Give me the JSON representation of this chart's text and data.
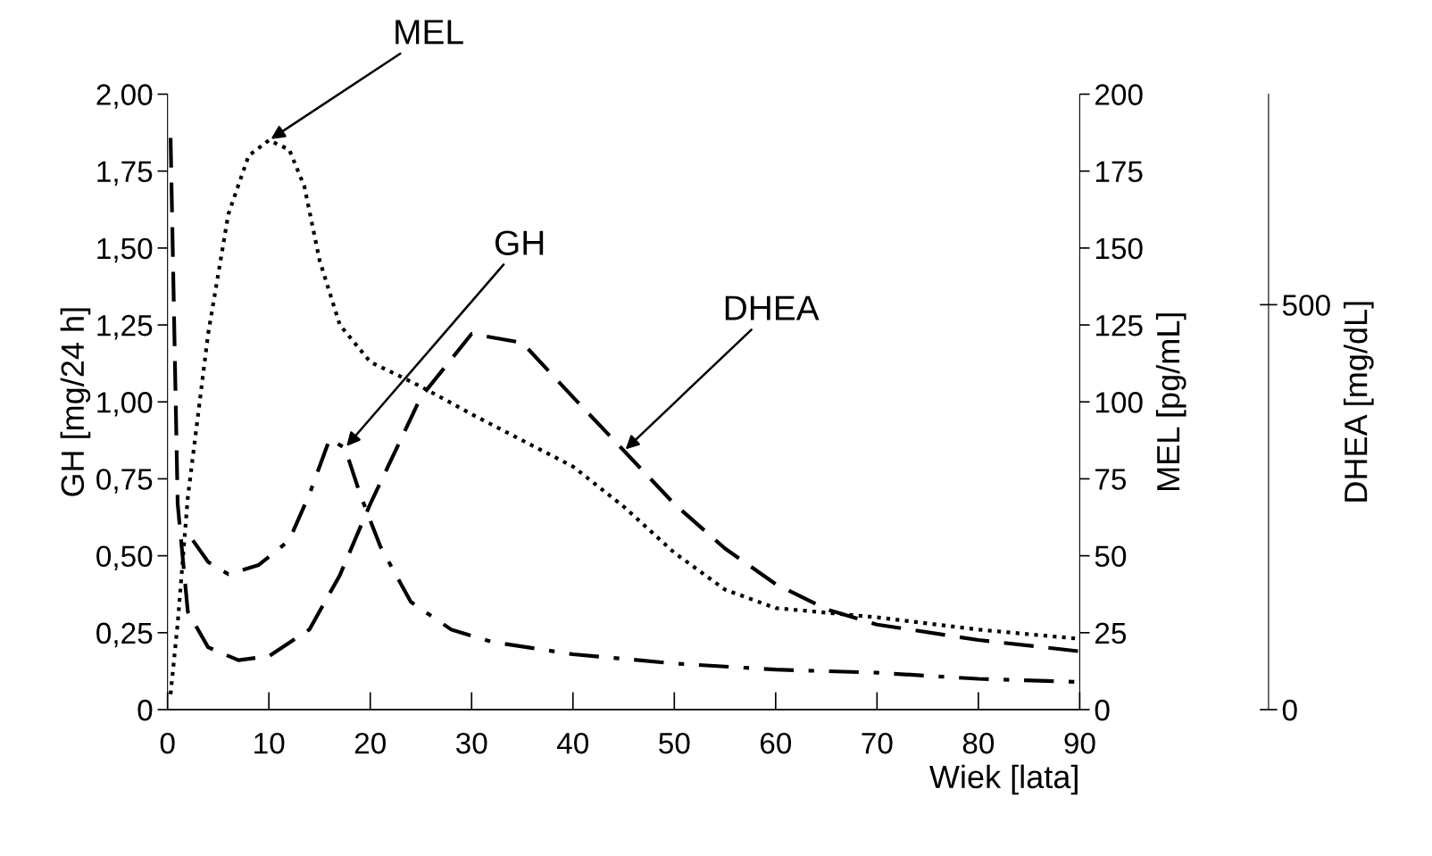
{
  "chart_data": {
    "type": "line",
    "xlabel": "Wiek [lata]",
    "ylabel": "GH [mg/24 h]",
    "y2label": "MEL [pg/mL]",
    "y3label": "DHEA [mg/dL]",
    "xlim": [
      0,
      90
    ],
    "xticks": [
      0,
      10,
      20,
      30,
      40,
      50,
      60,
      70,
      80,
      90
    ],
    "ylim": [
      0,
      2
    ],
    "yticks": [
      0,
      {
        "value": 0.25,
        "label": "0,25"
      },
      {
        "value": 0.5,
        "label": "0,50"
      },
      {
        "value": 0.75,
        "label": "0,75"
      },
      {
        "value": 1,
        "label": "1,00"
      },
      {
        "value": 1.25,
        "label": "1,25"
      },
      {
        "value": 1.5,
        "label": "1,50"
      },
      {
        "value": 1.75,
        "label": "1,75"
      },
      {
        "value": 2,
        "label": "2,00"
      }
    ],
    "y2lim": [
      0,
      200
    ],
    "y2ticks": [
      0,
      25,
      50,
      75,
      100,
      125,
      150,
      175,
      200
    ],
    "y3lim": [
      0,
      760
    ],
    "y3ticks": [
      0,
      500
    ],
    "grid": false,
    "marker": "none",
    "series": [
      {
        "color": "#000000",
        "line_style": "dotted",
        "axis": "y2",
        "x": [
          0.3,
          1,
          2,
          4,
          6,
          8,
          10,
          12,
          13.5,
          15,
          17,
          20,
          25,
          30,
          40,
          45,
          50,
          55,
          60,
          70,
          80,
          90
        ],
        "values": [
          5,
          28,
          69,
          122,
          161,
          180,
          185,
          182,
          170,
          146,
          125,
          113,
          105,
          96,
          79,
          66,
          51,
          39,
          33,
          30,
          26,
          23
        ]
      },
      {
        "color": "#000000",
        "line_style": "dashdot",
        "axis": "y",
        "x": [
          2.5,
          4,
          6,
          9,
          12,
          14,
          16,
          17.5,
          19,
          21,
          24,
          28,
          32,
          40,
          50,
          60,
          70,
          80,
          90
        ],
        "values": [
          0.55,
          0.48,
          0.44,
          0.47,
          0.55,
          0.7,
          0.88,
          0.85,
          0.7,
          0.53,
          0.35,
          0.26,
          0.22,
          0.18,
          0.15,
          0.13,
          0.12,
          0.1,
          0.09
        ]
      },
      {
        "color": "#000000",
        "line_style": "dashed",
        "axis": "y3",
        "x": [
          0.3,
          1,
          2,
          4,
          7,
          10,
          14,
          17,
          20,
          25,
          30,
          35,
          40,
          45,
          50,
          55,
          60,
          65,
          70,
          80,
          90
        ],
        "values": [
          706,
          254,
          121,
          77,
          61,
          66,
          99,
          166,
          254,
          386,
          464,
          453,
          386,
          320,
          254,
          199,
          155,
          124,
          105,
          86,
          72
        ]
      }
    ],
    "annotations": [
      {
        "text": "MEL",
        "x": 10,
        "y": 1.85
      },
      {
        "text": "GH",
        "x": 17.5,
        "y": 0.85
      },
      {
        "text": "DHEA",
        "x": 45,
        "y": 0.84
      }
    ]
  }
}
